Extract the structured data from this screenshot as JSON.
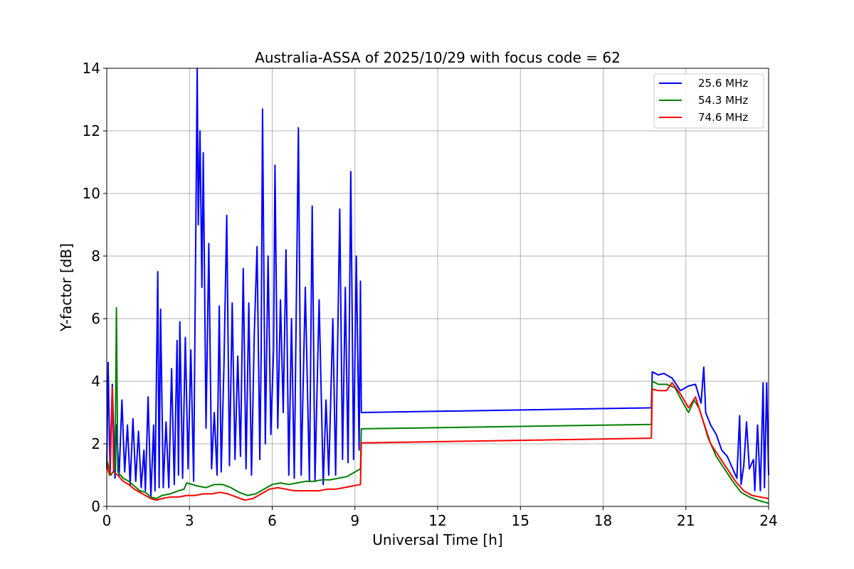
{
  "chart_data": {
    "type": "line",
    "title": "Australia-ASSA of 2025/10/29 with focus code = 62",
    "xlabel": "Universal Time [h]",
    "ylabel": "Y-factor [dB]",
    "xlim": [
      0,
      24
    ],
    "ylim": [
      0,
      14
    ],
    "x_ticks": [
      0,
      3,
      6,
      9,
      12,
      15,
      18,
      21,
      24
    ],
    "x_tick_labels": [
      "0",
      "3",
      "6",
      "9",
      "12",
      "15",
      "18",
      "21",
      "24"
    ],
    "y_ticks": [
      0,
      2,
      4,
      6,
      8,
      10,
      12,
      14
    ],
    "y_tick_labels": [
      "0",
      "2",
      "4",
      "6",
      "8",
      "10",
      "12",
      "14"
    ],
    "grid": true,
    "legend_position": "top-right",
    "series": [
      {
        "name": "25.6 MHz",
        "color": "#0000ff",
        "points": [
          [
            0.0,
            1.2
          ],
          [
            0.05,
            4.6
          ],
          [
            0.12,
            1.0
          ],
          [
            0.2,
            3.9
          ],
          [
            0.3,
            0.9
          ],
          [
            0.35,
            2.6
          ],
          [
            0.45,
            1.0
          ],
          [
            0.55,
            3.4
          ],
          [
            0.65,
            1.1
          ],
          [
            0.75,
            2.6
          ],
          [
            0.85,
            0.7
          ],
          [
            0.95,
            2.8
          ],
          [
            1.05,
            0.8
          ],
          [
            1.15,
            2.4
          ],
          [
            1.25,
            0.6
          ],
          [
            1.35,
            1.8
          ],
          [
            1.4,
            0.5
          ],
          [
            1.5,
            3.5
          ],
          [
            1.6,
            0.3
          ],
          [
            1.7,
            2.6
          ],
          [
            1.75,
            0.5
          ],
          [
            1.85,
            7.5
          ],
          [
            1.9,
            0.6
          ],
          [
            1.95,
            6.3
          ],
          [
            2.05,
            0.6
          ],
          [
            2.15,
            2.7
          ],
          [
            2.25,
            0.6
          ],
          [
            2.35,
            4.4
          ],
          [
            2.45,
            0.7
          ],
          [
            2.55,
            5.3
          ],
          [
            2.6,
            1.0
          ],
          [
            2.65,
            5.9
          ],
          [
            2.75,
            0.9
          ],
          [
            2.85,
            5.4
          ],
          [
            2.95,
            1.2
          ],
          [
            3.05,
            5.0
          ],
          [
            3.15,
            0.8
          ],
          [
            3.2,
            5.8
          ],
          [
            3.28,
            14.0
          ],
          [
            3.32,
            9.0
          ],
          [
            3.38,
            12.0
          ],
          [
            3.45,
            7.0
          ],
          [
            3.5,
            11.3
          ],
          [
            3.6,
            2.5
          ],
          [
            3.7,
            8.4
          ],
          [
            3.8,
            1.2
          ],
          [
            3.9,
            3.0
          ],
          [
            4.0,
            1.0
          ],
          [
            4.08,
            6.4
          ],
          [
            4.15,
            1.1
          ],
          [
            4.25,
            4.5
          ],
          [
            4.35,
            9.3
          ],
          [
            4.45,
            1.3
          ],
          [
            4.55,
            6.5
          ],
          [
            4.65,
            1.5
          ],
          [
            4.75,
            4.8
          ],
          [
            4.85,
            1.6
          ],
          [
            4.95,
            7.6
          ],
          [
            5.05,
            1.2
          ],
          [
            5.15,
            6.5
          ],
          [
            5.25,
            1.0
          ],
          [
            5.35,
            5.5
          ],
          [
            5.45,
            8.3
          ],
          [
            5.55,
            1.5
          ],
          [
            5.6,
            5.0
          ],
          [
            5.65,
            12.7
          ],
          [
            5.75,
            2.0
          ],
          [
            5.85,
            8.0
          ],
          [
            5.95,
            2.3
          ],
          [
            6.05,
            5.0
          ],
          [
            6.1,
            10.9
          ],
          [
            6.2,
            2.5
          ],
          [
            6.3,
            6.6
          ],
          [
            6.4,
            3.0
          ],
          [
            6.5,
            8.2
          ],
          [
            6.6,
            1.0
          ],
          [
            6.7,
            6.0
          ],
          [
            6.8,
            0.9
          ],
          [
            6.95,
            12.1
          ],
          [
            7.05,
            1.0
          ],
          [
            7.2,
            7.0
          ],
          [
            7.35,
            0.8
          ],
          [
            7.45,
            9.6
          ],
          [
            7.55,
            0.8
          ],
          [
            7.7,
            6.6
          ],
          [
            7.85,
            0.7
          ],
          [
            7.95,
            3.4
          ],
          [
            8.05,
            1.0
          ],
          [
            8.2,
            6.0
          ],
          [
            8.3,
            1.0
          ],
          [
            8.45,
            9.5
          ],
          [
            8.55,
            1.5
          ],
          [
            8.65,
            7.0
          ],
          [
            8.75,
            1.4
          ],
          [
            8.85,
            10.7
          ],
          [
            8.95,
            1.5
          ],
          [
            9.05,
            8.0
          ],
          [
            9.15,
            1.8
          ],
          [
            9.2,
            7.2
          ],
          [
            9.23,
            3.0
          ],
          [
            19.75,
            3.15
          ],
          [
            19.78,
            4.3
          ],
          [
            20.0,
            4.2
          ],
          [
            20.2,
            4.25
          ],
          [
            20.5,
            4.1
          ],
          [
            20.8,
            3.7
          ],
          [
            21.1,
            3.85
          ],
          [
            21.35,
            3.9
          ],
          [
            21.55,
            3.3
          ],
          [
            21.65,
            4.45
          ],
          [
            21.72,
            3.0
          ],
          [
            21.9,
            2.6
          ],
          [
            22.1,
            2.3
          ],
          [
            22.3,
            1.8
          ],
          [
            22.5,
            1.6
          ],
          [
            22.7,
            1.2
          ],
          [
            22.85,
            0.9
          ],
          [
            22.95,
            2.9
          ],
          [
            23.0,
            0.7
          ],
          [
            23.1,
            1.3
          ],
          [
            23.2,
            2.7
          ],
          [
            23.3,
            1.2
          ],
          [
            23.45,
            1.5
          ],
          [
            23.5,
            0.5
          ],
          [
            23.6,
            2.6
          ],
          [
            23.7,
            0.5
          ],
          [
            23.8,
            3.95
          ],
          [
            23.85,
            0.6
          ],
          [
            23.93,
            3.95
          ],
          [
            24.0,
            1.0
          ]
        ]
      },
      {
        "name": "54.3 MHz",
        "color": "#008000",
        "points": [
          [
            0.0,
            1.5
          ],
          [
            0.15,
            1.0
          ],
          [
            0.3,
            1.2
          ],
          [
            0.35,
            6.35
          ],
          [
            0.4,
            1.1
          ],
          [
            0.6,
            0.9
          ],
          [
            0.8,
            0.8
          ],
          [
            1.0,
            0.65
          ],
          [
            1.2,
            0.5
          ],
          [
            1.4,
            0.45
          ],
          [
            1.6,
            0.3
          ],
          [
            1.8,
            0.25
          ],
          [
            2.0,
            0.35
          ],
          [
            2.3,
            0.4
          ],
          [
            2.6,
            0.5
          ],
          [
            2.8,
            0.55
          ],
          [
            2.9,
            0.75
          ],
          [
            3.3,
            0.65
          ],
          [
            3.6,
            0.6
          ],
          [
            3.9,
            0.7
          ],
          [
            4.2,
            0.7
          ],
          [
            4.5,
            0.6
          ],
          [
            4.8,
            0.45
          ],
          [
            5.1,
            0.35
          ],
          [
            5.4,
            0.4
          ],
          [
            5.7,
            0.55
          ],
          [
            6.0,
            0.7
          ],
          [
            6.3,
            0.75
          ],
          [
            6.6,
            0.7
          ],
          [
            6.9,
            0.75
          ],
          [
            7.2,
            0.8
          ],
          [
            7.5,
            0.8
          ],
          [
            7.8,
            0.85
          ],
          [
            8.1,
            0.85
          ],
          [
            8.4,
            0.9
          ],
          [
            8.7,
            0.95
          ],
          [
            9.0,
            1.1
          ],
          [
            9.2,
            1.2
          ],
          [
            9.23,
            2.48
          ],
          [
            19.75,
            2.62
          ],
          [
            19.78,
            4.0
          ],
          [
            20.0,
            3.9
          ],
          [
            20.3,
            3.9
          ],
          [
            20.6,
            3.8
          ],
          [
            20.9,
            3.3
          ],
          [
            21.1,
            3.0
          ],
          [
            21.3,
            3.4
          ],
          [
            21.5,
            3.1
          ],
          [
            21.8,
            2.2
          ],
          [
            22.1,
            1.6
          ],
          [
            22.4,
            1.2
          ],
          [
            22.7,
            0.8
          ],
          [
            23.0,
            0.45
          ],
          [
            23.3,
            0.3
          ],
          [
            23.6,
            0.2
          ],
          [
            23.8,
            0.15
          ],
          [
            24.0,
            0.1
          ]
        ]
      },
      {
        "name": "74.6 MHz",
        "color": "#ff0000",
        "points": [
          [
            0.0,
            1.3
          ],
          [
            0.1,
            1.0
          ],
          [
            0.2,
            3.8
          ],
          [
            0.25,
            1.1
          ],
          [
            0.4,
            1.0
          ],
          [
            0.6,
            0.8
          ],
          [
            0.8,
            0.7
          ],
          [
            1.0,
            0.55
          ],
          [
            1.2,
            0.45
          ],
          [
            1.4,
            0.35
          ],
          [
            1.6,
            0.25
          ],
          [
            1.8,
            0.2
          ],
          [
            2.0,
            0.25
          ],
          [
            2.3,
            0.3
          ],
          [
            2.6,
            0.3
          ],
          [
            2.9,
            0.35
          ],
          [
            3.2,
            0.35
          ],
          [
            3.5,
            0.4
          ],
          [
            3.8,
            0.4
          ],
          [
            4.1,
            0.45
          ],
          [
            4.4,
            0.4
          ],
          [
            4.7,
            0.3
          ],
          [
            5.0,
            0.2
          ],
          [
            5.3,
            0.25
          ],
          [
            5.6,
            0.4
          ],
          [
            5.9,
            0.55
          ],
          [
            6.2,
            0.6
          ],
          [
            6.5,
            0.55
          ],
          [
            6.8,
            0.5
          ],
          [
            7.1,
            0.5
          ],
          [
            7.4,
            0.5
          ],
          [
            7.7,
            0.5
          ],
          [
            8.0,
            0.55
          ],
          [
            8.3,
            0.55
          ],
          [
            8.6,
            0.6
          ],
          [
            8.9,
            0.65
          ],
          [
            9.2,
            0.7
          ],
          [
            9.23,
            2.03
          ],
          [
            19.75,
            2.18
          ],
          [
            19.78,
            3.75
          ],
          [
            20.0,
            3.7
          ],
          [
            20.3,
            3.7
          ],
          [
            20.5,
            3.95
          ],
          [
            20.8,
            3.6
          ],
          [
            21.1,
            3.15
          ],
          [
            21.35,
            3.5
          ],
          [
            21.6,
            2.8
          ],
          [
            21.9,
            2.0
          ],
          [
            22.2,
            1.6
          ],
          [
            22.5,
            1.2
          ],
          [
            22.8,
            0.8
          ],
          [
            23.1,
            0.5
          ],
          [
            23.4,
            0.35
          ],
          [
            23.7,
            0.3
          ],
          [
            24.0,
            0.25
          ]
        ]
      }
    ]
  }
}
